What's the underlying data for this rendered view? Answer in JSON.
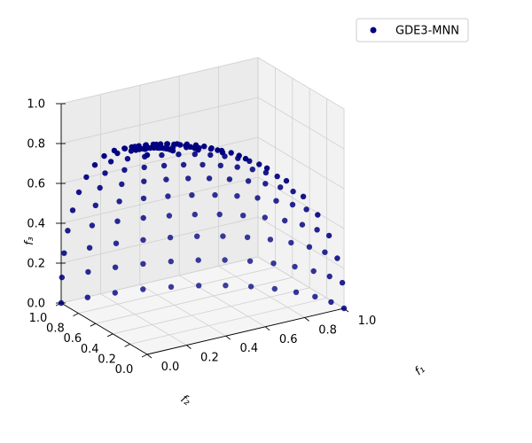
{
  "chart_data": {
    "type": "scatter",
    "projection": "3d",
    "title": "",
    "xlabel": "f₁",
    "ylabel": "f₂",
    "zlabel": "f₃",
    "xlim": [
      0,
      1
    ],
    "ylim": [
      0,
      1
    ],
    "zlim": [
      0,
      1
    ],
    "xticks": [
      "0.0",
      "0.2",
      "0.4",
      "0.6",
      "0.8",
      "1.0"
    ],
    "yticks": [
      "0.0",
      "0.2",
      "0.4",
      "0.6",
      "0.8",
      "1.0"
    ],
    "zticks": [
      "0.0",
      "0.2",
      "0.4",
      "0.6",
      "0.8",
      "1.0"
    ],
    "grid": true,
    "legend_position": "top-right",
    "series": [
      {
        "name": "GDE3-MNN",
        "color": "#000080",
        "surface": "unit sphere octant f1²+f2²+f3²=1 (DTLZ2 front)",
        "polar_divisions": 12,
        "azimuth_divisions": 12,
        "point_count": 145
      }
    ]
  }
}
